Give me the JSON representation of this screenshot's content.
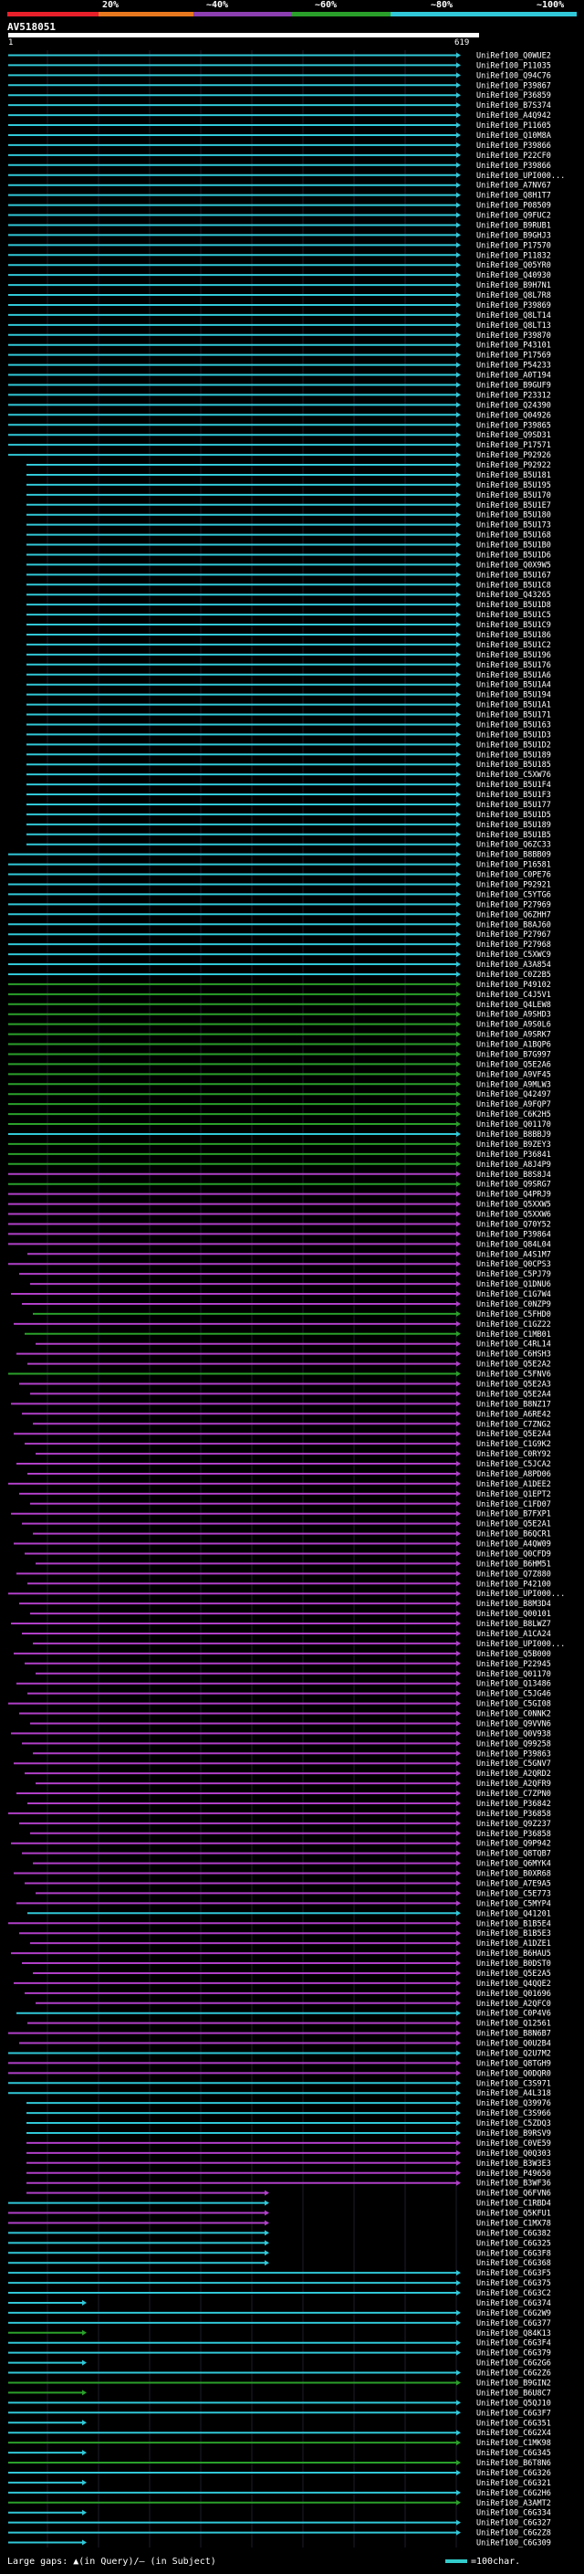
{
  "legend": {
    "labels": [
      "20%",
      "~40%",
      "~60%",
      "~80%",
      "~100%"
    ],
    "colors": [
      "#e8202a",
      "#e8781e",
      "#8b3fb0",
      "#2aa02a",
      "#30c8d8"
    ]
  },
  "query": {
    "title": "AV518051",
    "start": "1",
    "end": "619"
  },
  "hits": [
    {
      "id": "UniRef100_Q0WUE2",
      "pid": 100
    },
    {
      "id": "UniRef100_P11035",
      "pid": 100
    },
    {
      "id": "UniRef100_Q94C76",
      "pid": 100
    },
    {
      "id": "UniRef100_P39867",
      "pid": 100
    },
    {
      "id": "UniRef100_P36859",
      "pid": 100
    },
    {
      "id": "UniRef100_B7S374",
      "pid": 100
    },
    {
      "id": "UniRef100_A4Q942",
      "pid": 100
    },
    {
      "id": "UniRef100_P11605",
      "pid": 100
    },
    {
      "id": "UniRef100_Q10M8A",
      "pid": 100
    },
    {
      "id": "UniRef100_P39866",
      "pid": 100
    },
    {
      "id": "UniRef100_P22CF0",
      "pid": 100
    },
    {
      "id": "UniRef100_P39866",
      "pid": 100
    },
    {
      "id": "UniRef100_UPI000...",
      "pid": 100
    },
    {
      "id": "UniRef100_A7NV67",
      "pid": 100
    },
    {
      "id": "UniRef100_Q8H1T7",
      "pid": 100
    },
    {
      "id": "UniRef100_P08509",
      "pid": 100
    },
    {
      "id": "UniRef100_Q9FUC2",
      "pid": 100
    },
    {
      "id": "UniRef100_B9RUB1",
      "pid": 100
    },
    {
      "id": "UniRef100_B9GHJ3",
      "pid": 100
    },
    {
      "id": "UniRef100_P17570",
      "pid": 100
    },
    {
      "id": "UniRef100_P11832",
      "pid": 100
    },
    {
      "id": "UniRef100_Q05YR0",
      "pid": 100
    },
    {
      "id": "UniRef100_Q40930",
      "pid": 100
    },
    {
      "id": "UniRef100_B9H7N1",
      "pid": 100
    },
    {
      "id": "UniRef100_Q8L7R8",
      "pid": 100
    },
    {
      "id": "UniRef100_P39869",
      "pid": 100
    },
    {
      "id": "UniRef100_Q8LT14",
      "pid": 100
    },
    {
      "id": "UniRef100_Q8LT13",
      "pid": 100
    },
    {
      "id": "UniRef100_P39870",
      "pid": 100
    },
    {
      "id": "UniRef100_P43101",
      "pid": 100
    },
    {
      "id": "UniRef100_P17569",
      "pid": 100
    },
    {
      "id": "UniRef100_P54233",
      "pid": 100
    },
    {
      "id": "UniRef100_A0T194",
      "pid": 100
    },
    {
      "id": "UniRef100_B9GUF9",
      "pid": 100
    },
    {
      "id": "UniRef100_P23312",
      "pid": 100
    },
    {
      "id": "UniRef100_Q24390",
      "pid": 100
    },
    {
      "id": "UniRef100_Q04926",
      "pid": 100
    },
    {
      "id": "UniRef100_P39865",
      "pid": 100
    },
    {
      "id": "UniRef100_Q9SD31",
      "pid": 100
    },
    {
      "id": "UniRef100_P17571",
      "pid": 100
    },
    {
      "id": "UniRef100_P92926",
      "pid": 100
    },
    {
      "id": "UniRef100_P92922",
      "pid": 100
    },
    {
      "id": "UniRef100_B5U181",
      "pid": 100
    },
    {
      "id": "UniRef100_B5U195",
      "pid": 100
    },
    {
      "id": "UniRef100_B5U170",
      "pid": 100
    },
    {
      "id": "UniRef100_B5U1E7",
      "pid": 100
    },
    {
      "id": "UniRef100_B5U180",
      "pid": 100
    },
    {
      "id": "UniRef100_B5U173",
      "pid": 100
    },
    {
      "id": "UniRef100_B5U168",
      "pid": 100
    },
    {
      "id": "UniRef100_B5U1B0",
      "pid": 100
    },
    {
      "id": "UniRef100_B5U1D6",
      "pid": 100
    },
    {
      "id": "UniRef100_Q0X9W5",
      "pid": 100
    },
    {
      "id": "UniRef100_B5U167",
      "pid": 100
    },
    {
      "id": "UniRef100_B5U1C8",
      "pid": 100
    },
    {
      "id": "UniRef100_Q43265",
      "pid": 100
    },
    {
      "id": "UniRef100_B5U1D8",
      "pid": 100
    },
    {
      "id": "UniRef100_B5U1C5",
      "pid": 100
    },
    {
      "id": "UniRef100_B5U1C9",
      "pid": 100
    },
    {
      "id": "UniRef100_B5U186",
      "pid": 100
    },
    {
      "id": "UniRef100_B5U1C2",
      "pid": 100
    },
    {
      "id": "UniRef100_B5U196",
      "pid": 100
    },
    {
      "id": "UniRef100_B5U176",
      "pid": 100
    },
    {
      "id": "UniRef100_B5U1A6",
      "pid": 100
    },
    {
      "id": "UniRef100_B5U1A4",
      "pid": 100
    },
    {
      "id": "UniRef100_B5U194",
      "pid": 100
    },
    {
      "id": "UniRef100_B5U1A1",
      "pid": 100
    },
    {
      "id": "UniRef100_B5U171",
      "pid": 100
    },
    {
      "id": "UniRef100_B5U163",
      "pid": 100
    },
    {
      "id": "UniRef100_B5U1D3",
      "pid": 100
    },
    {
      "id": "UniRef100_B5U1D2",
      "pid": 100
    },
    {
      "id": "UniRef100_B5U189",
      "pid": 100
    },
    {
      "id": "UniRef100_B5U185",
      "pid": 100
    },
    {
      "id": "UniRef100_C5XW76",
      "pid": 100
    },
    {
      "id": "UniRef100_B5U1F4",
      "pid": 100
    },
    {
      "id": "UniRef100_B5U1F3",
      "pid": 100
    },
    {
      "id": "UniRef100_B5U177",
      "pid": 100
    },
    {
      "id": "UniRef100_B5U1D5",
      "pid": 100
    },
    {
      "id": "UniRef100_B5U189",
      "pid": 100
    },
    {
      "id": "UniRef100_B5U1B5",
      "pid": 100
    },
    {
      "id": "UniRef100_Q6ZC33",
      "pid": 100
    },
    {
      "id": "UniRef100_B8BB09",
      "pid": 100
    },
    {
      "id": "UniRef100_P16581",
      "pid": 100
    },
    {
      "id": "UniRef100_C0PE76",
      "pid": 100
    },
    {
      "id": "UniRef100_P92921",
      "pid": 100
    },
    {
      "id": "UniRef100_C5YTG6",
      "pid": 100
    },
    {
      "id": "UniRef100_P27969",
      "pid": 100
    },
    {
      "id": "UniRef100_Q6ZHH7",
      "pid": 100
    },
    {
      "id": "UniRef100_B8AJ60",
      "pid": 100
    },
    {
      "id": "UniRef100_P27967",
      "pid": 100
    },
    {
      "id": "UniRef100_P27968",
      "pid": 100
    },
    {
      "id": "UniRef100_C5XWC9",
      "pid": 100
    },
    {
      "id": "UniRef100_A3A854",
      "pid": 100
    },
    {
      "id": "UniRef100_C0Z2B5",
      "pid": 100
    },
    {
      "id": "UniRef100_P49102",
      "pid": 80
    },
    {
      "id": "UniRef100_C4J5V1",
      "pid": 80
    },
    {
      "id": "UniRef100_Q4LEW8",
      "pid": 80
    },
    {
      "id": "UniRef100_A9SHD3",
      "pid": 80
    },
    {
      "id": "UniRef100_A9S0L6",
      "pid": 80
    },
    {
      "id": "UniRef100_A9SRK7",
      "pid": 80
    },
    {
      "id": "UniRef100_A1BQP6",
      "pid": 80
    },
    {
      "id": "UniRef100_B7G997",
      "pid": 80
    },
    {
      "id": "UniRef100_Q5E2A6",
      "pid": 80
    },
    {
      "id": "UniRef100_A9VF45",
      "pid": 80
    },
    {
      "id": "UniRef100_A9MLW3",
      "pid": 80
    },
    {
      "id": "UniRef100_Q42497",
      "pid": 80
    },
    {
      "id": "UniRef100_A9FQP7",
      "pid": 80
    },
    {
      "id": "UniRef100_C6K2H5",
      "pid": 80
    },
    {
      "id": "UniRef100_Q01170",
      "pid": 80
    },
    {
      "id": "UniRef100_B8BBJ9",
      "pid": 100
    },
    {
      "id": "UniRef100_B9ZEY3",
      "pid": 80
    },
    {
      "id": "UniRef100_P36841",
      "pid": 80
    },
    {
      "id": "UniRef100_A8J4P9",
      "pid": 80
    },
    {
      "id": "UniRef100_B8S8J4",
      "pid": 60
    },
    {
      "id": "UniRef100_Q9SRG7",
      "pid": 80
    },
    {
      "id": "UniRef100_Q4PRJ9",
      "pid": 60
    },
    {
      "id": "UniRef100_Q5XXW5",
      "pid": 60
    },
    {
      "id": "UniRef100_Q5XXW6",
      "pid": 60
    },
    {
      "id": "UniRef100_Q70Y52",
      "pid": 60
    },
    {
      "id": "UniRef100_P39864",
      "pid": 60
    },
    {
      "id": "UniRef100_Q84L04",
      "pid": 60
    },
    {
      "id": "UniRef100_A4S1M7",
      "pid": 60
    },
    {
      "id": "UniRef100_Q0CPS3",
      "pid": 60
    },
    {
      "id": "UniRef100_C5PJ79",
      "pid": 60
    },
    {
      "id": "UniRef100_Q1DNU6",
      "pid": 60
    },
    {
      "id": "UniRef100_C1G7W4",
      "pid": 60
    },
    {
      "id": "UniRef100_C0NZP9",
      "pid": 60
    },
    {
      "id": "UniRef100_C5FHD0",
      "pid": 80
    },
    {
      "id": "UniRef100_C1GZ22",
      "pid": 60
    },
    {
      "id": "UniRef100_C1MB01",
      "pid": 80
    },
    {
      "id": "UniRef100_C4RL14",
      "pid": 60
    },
    {
      "id": "UniRef100_C6HSH3",
      "pid": 60
    },
    {
      "id": "UniRef100_Q5E2A2",
      "pid": 60
    },
    {
      "id": "UniRef100_C5FNV6",
      "pid": 80
    },
    {
      "id": "UniRef100_Q5E2A3",
      "pid": 60
    },
    {
      "id": "UniRef100_Q5E2A4",
      "pid": 60
    },
    {
      "id": "UniRef100_B8NZ17",
      "pid": 60
    },
    {
      "id": "UniRef100_A6RE42",
      "pid": 60
    },
    {
      "id": "UniRef100_C7ZNG2",
      "pid": 60
    },
    {
      "id": "UniRef100_Q5E2A4",
      "pid": 60
    },
    {
      "id": "UniRef100_C1G9K2",
      "pid": 60
    },
    {
      "id": "UniRef100_C0RY92",
      "pid": 60
    },
    {
      "id": "UniRef100_C5JCA2",
      "pid": 60
    },
    {
      "id": "UniRef100_A8PD06",
      "pid": 60
    },
    {
      "id": "UniRef100_A1DEE2",
      "pid": 60
    },
    {
      "id": "UniRef100_Q1EPT2",
      "pid": 60
    },
    {
      "id": "UniRef100_C1FD07",
      "pid": 60
    },
    {
      "id": "UniRef100_B7FXP1",
      "pid": 60
    },
    {
      "id": "UniRef100_Q5E2A1",
      "pid": 60
    },
    {
      "id": "UniRef100_B6QCR1",
      "pid": 60
    },
    {
      "id": "UniRef100_A4QW09",
      "pid": 60
    },
    {
      "id": "UniRef100_Q0CFD9",
      "pid": 60
    },
    {
      "id": "UniRef100_B6HM51",
      "pid": 60
    },
    {
      "id": "UniRef100_Q7Z880",
      "pid": 60
    },
    {
      "id": "UniRef100_P42100",
      "pid": 60
    },
    {
      "id": "UniRef100_UPI000...",
      "pid": 60
    },
    {
      "id": "UniRef100_B8M3D4",
      "pid": 60
    },
    {
      "id": "UniRef100_Q00101",
      "pid": 60
    },
    {
      "id": "UniRef100_B8LWZ7",
      "pid": 60
    },
    {
      "id": "UniRef100_A1CA24",
      "pid": 60
    },
    {
      "id": "UniRef100_UPI000...",
      "pid": 60
    },
    {
      "id": "UniRef100_Q5B000",
      "pid": 60
    },
    {
      "id": "UniRef100_P22945",
      "pid": 60
    },
    {
      "id": "UniRef100_Q01170",
      "pid": 60
    },
    {
      "id": "UniRef100_Q13486",
      "pid": 60
    },
    {
      "id": "UniRef100_C5JG46",
      "pid": 60
    },
    {
      "id": "UniRef100_C5GI08",
      "pid": 60
    },
    {
      "id": "UniRef100_C0NNK2",
      "pid": 60
    },
    {
      "id": "UniRef100_Q9VVN6",
      "pid": 60
    },
    {
      "id": "UniRef100_Q0V938",
      "pid": 60
    },
    {
      "id": "UniRef100_Q99258",
      "pid": 60
    },
    {
      "id": "UniRef100_P39863",
      "pid": 60
    },
    {
      "id": "UniRef100_C5GNV7",
      "pid": 60
    },
    {
      "id": "UniRef100_A2QRD2",
      "pid": 60
    },
    {
      "id": "UniRef100_A2QFR9",
      "pid": 60
    },
    {
      "id": "UniRef100_C7ZPN0",
      "pid": 60
    },
    {
      "id": "UniRef100_P36842",
      "pid": 60
    },
    {
      "id": "UniRef100_P36858",
      "pid": 60
    },
    {
      "id": "UniRef100_Q9Z237",
      "pid": 60
    },
    {
      "id": "UniRef100_P36858",
      "pid": 60
    },
    {
      "id": "UniRef100_Q9P942",
      "pid": 60
    },
    {
      "id": "UniRef100_Q8TQB7",
      "pid": 60
    },
    {
      "id": "UniRef100_Q6MYK4",
      "pid": 60
    },
    {
      "id": "UniRef100_B0XR68",
      "pid": 60
    },
    {
      "id": "UniRef100_A7E9A5",
      "pid": 60
    },
    {
      "id": "UniRef100_C5E773",
      "pid": 60
    },
    {
      "id": "UniRef100_C5MYP4",
      "pid": 60
    },
    {
      "id": "UniRef100_Q41201",
      "pid": 100
    },
    {
      "id": "UniRef100_B1B5E4",
      "pid": 60
    },
    {
      "id": "UniRef100_B1B5E3",
      "pid": 60
    },
    {
      "id": "UniRef100_A1DZE1",
      "pid": 60
    },
    {
      "id": "UniRef100_B6HAU5",
      "pid": 60
    },
    {
      "id": "UniRef100_B0DST0",
      "pid": 60
    },
    {
      "id": "UniRef100_Q5E2A5",
      "pid": 60
    },
    {
      "id": "UniRef100_Q4QQE2",
      "pid": 60
    },
    {
      "id": "UniRef100_Q01696",
      "pid": 60
    },
    {
      "id": "UniRef100_A2QFC0",
      "pid": 60
    },
    {
      "id": "UniRef100_C0P4V6",
      "pid": 100
    },
    {
      "id": "UniRef100_Q12561",
      "pid": 60
    },
    {
      "id": "UniRef100_B8N6B7",
      "pid": 60
    },
    {
      "id": "UniRef100_Q0U2B4",
      "pid": 60
    },
    {
      "id": "UniRef100_Q2U7M2",
      "pid": 100
    },
    {
      "id": "UniRef100_Q8TGH9",
      "pid": 60
    },
    {
      "id": "UniRef100_Q0DQR0",
      "pid": 60
    },
    {
      "id": "UniRef100_C3S971",
      "pid": 100
    },
    {
      "id": "UniRef100_A4L318",
      "pid": 100
    },
    {
      "id": "UniRef100_Q39976",
      "pid": 100
    },
    {
      "id": "UniRef100_C3S966",
      "pid": 100
    },
    {
      "id": "UniRef100_C5ZDQ3",
      "pid": 100
    },
    {
      "id": "UniRef100_B9RSV9",
      "pid": 100
    },
    {
      "id": "UniRef100_C0VE59",
      "pid": 60
    },
    {
      "id": "UniRef100_Q0Q303",
      "pid": 60
    },
    {
      "id": "UniRef100_B3W3E3",
      "pid": 60
    },
    {
      "id": "UniRef100_P49650",
      "pid": 60
    },
    {
      "id": "UniRef100_B3WF36",
      "pid": 60
    },
    {
      "id": "UniRef100_Q6FVN6",
      "pid": 60
    },
    {
      "id": "UniRef100_C1RBD4",
      "pid": 100
    },
    {
      "id": "UniRef100_Q5KFU1",
      "pid": 60
    },
    {
      "id": "UniRef100_C1MX78",
      "pid": 60
    },
    {
      "id": "UniRef100_C6G382",
      "pid": 100
    },
    {
      "id": "UniRef100_C6G325",
      "pid": 100
    },
    {
      "id": "UniRef100_C6G3F8",
      "pid": 100
    },
    {
      "id": "UniRef100_C6G368",
      "pid": 100
    },
    {
      "id": "UniRef100_C6G3F5",
      "pid": 100
    },
    {
      "id": "UniRef100_C6G375",
      "pid": 100
    },
    {
      "id": "UniRef100_C6G3C2",
      "pid": 100
    },
    {
      "id": "UniRef100_C6G374",
      "pid": 100
    },
    {
      "id": "UniRef100_C6G2W9",
      "pid": 100
    },
    {
      "id": "UniRef100_C6G377",
      "pid": 100
    },
    {
      "id": "UniRef100_Q84K13",
      "pid": 80
    },
    {
      "id": "UniRef100_C6G3F4",
      "pid": 100
    },
    {
      "id": "UniRef100_C6G379",
      "pid": 100
    },
    {
      "id": "UniRef100_C6G2G6",
      "pid": 100
    },
    {
      "id": "UniRef100_C6G2Z6",
      "pid": 100
    },
    {
      "id": "UniRef100_B9GIN2",
      "pid": 80
    },
    {
      "id": "UniRef100_B6U8C7",
      "pid": 80
    },
    {
      "id": "UniRef100_Q5QJ10",
      "pid": 100
    },
    {
      "id": "UniRef100_C6G3F7",
      "pid": 100
    },
    {
      "id": "UniRef100_C6G351",
      "pid": 100
    },
    {
      "id": "UniRef100_C6G2X4",
      "pid": 100
    },
    {
      "id": "UniRef100_C1MK98",
      "pid": 80
    },
    {
      "id": "UniRef100_C6G345",
      "pid": 100
    },
    {
      "id": "UniRef100_B6T8N6",
      "pid": 80
    },
    {
      "id": "UniRef100_C6G326",
      "pid": 100
    },
    {
      "id": "UniRef100_C6G321",
      "pid": 100
    },
    {
      "id": "UniRef100_C6G2H6",
      "pid": 100
    },
    {
      "id": "UniRef100_A3AMT2",
      "pid": 80
    },
    {
      "id": "UniRef100_C6G334",
      "pid": 100
    },
    {
      "id": "UniRef100_C6G327",
      "pid": 100
    },
    {
      "id": "UniRef100_C6G2Z8",
      "pid": 100
    },
    {
      "id": "UniRef100_C6G309",
      "pid": 100
    }
  ],
  "footer": {
    "gap_label": "Large gaps: ▲(in Query)/– (in Subject)",
    "scale_label": "=100char."
  }
}
